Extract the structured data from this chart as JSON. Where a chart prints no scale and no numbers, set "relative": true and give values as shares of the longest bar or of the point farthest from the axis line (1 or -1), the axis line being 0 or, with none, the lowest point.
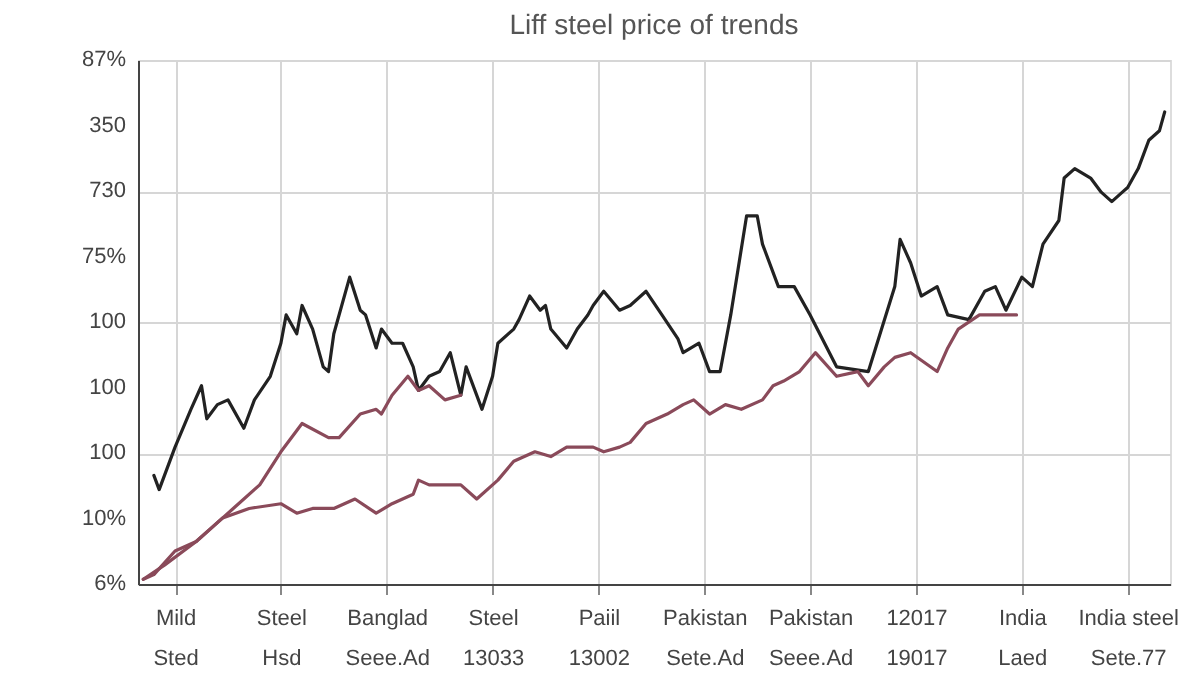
{
  "chart_data": {
    "type": "line",
    "title": "Liff steel price of trends",
    "grid": true,
    "relative": true,
    "line_style": "solid",
    "annotations": [
      "87%",
      "350",
      "730",
      "75%",
      "100",
      "100",
      "100",
      "10%",
      "6%"
    ],
    "categories": [
      null,
      null,
      null,
      null,
      null,
      null,
      null,
      "Mild\nSted",
      null,
      null,
      null,
      null,
      null,
      null,
      null,
      null,
      null,
      null,
      null,
      null,
      null,
      null,
      null,
      null,
      null,
      null,
      null,
      "Steel\nHsd",
      null,
      null,
      null,
      null,
      null,
      null,
      null,
      null,
      null,
      null,
      null,
      null,
      null,
      null,
      null,
      null,
      null,
      null,
      null,
      "Banglad\nSeee.Ad",
      null,
      null,
      null,
      null,
      null,
      null,
      null,
      null,
      null,
      null,
      null,
      null,
      null,
      null,
      null,
      null,
      null,
      null,
      null,
      "Steel\n13033",
      null,
      null,
      null,
      null,
      null,
      null,
      null,
      null,
      null,
      null,
      null,
      null,
      null,
      null,
      null,
      null,
      null,
      null,
      null,
      "Paiil\n13002",
      null,
      null,
      null,
      null,
      null,
      null,
      null,
      null,
      null,
      null,
      null,
      null,
      null,
      null,
      null,
      null,
      null,
      null,
      null,
      "Pakistan\nSete.Ad",
      null,
      null,
      null,
      null,
      null,
      null,
      null,
      null,
      null,
      null,
      null,
      null,
      null,
      null,
      null,
      null,
      null,
      null,
      null,
      "Pakistan\nSeee.Ad",
      null,
      null,
      null,
      null,
      null,
      null,
      null,
      null,
      null,
      null,
      null,
      null,
      null,
      null,
      null,
      null,
      null,
      null,
      null,
      "12017\n19017",
      null,
      null,
      null,
      null,
      null,
      null,
      null,
      null,
      null,
      null,
      null,
      null,
      null,
      null,
      null,
      null,
      null,
      null,
      null,
      "India\nLaed",
      null,
      null,
      null,
      null,
      null,
      null,
      null,
      null,
      null,
      null,
      null,
      null,
      null,
      null,
      null,
      null,
      null,
      null,
      null,
      "India steel\nSete.77",
      null,
      null,
      null,
      null,
      null,
      null,
      null,
      null
    ],
    "series": [
      {
        "color": "#222222",
        "values": [
          null,
          null,
          null,
          0.23,
          0.2,
          null,
          null,
          0.29,
          null,
          null,
          0.37,
          null,
          0.42,
          0.35,
          null,
          0.38,
          null,
          0.39,
          null,
          null,
          0.33,
          null,
          0.39,
          null,
          null,
          0.44,
          null,
          0.51,
          0.57,
          null,
          0.53,
          0.59,
          null,
          0.54,
          null,
          0.46,
          0.45,
          0.53,
          null,
          null,
          0.65,
          null,
          0.58,
          0.57,
          null,
          0.5,
          0.54,
          null,
          0.51,
          null,
          0.51,
          null,
          0.46,
          0.41,
          null,
          0.44,
          null,
          0.45,
          null,
          0.49,
          null,
          0.4,
          0.46,
          null,
          null,
          0.37,
          null,
          0.44,
          0.51,
          null,
          null,
          0.54,
          0.56,
          null,
          0.61,
          null,
          0.58,
          0.59,
          0.54,
          null,
          null,
          0.5,
          null,
          0.54,
          null,
          0.57,
          0.59,
          null,
          0.62,
          null,
          null,
          0.58,
          null,
          0.59,
          null,
          null,
          0.62,
          null,
          null,
          0.57,
          null,
          null,
          0.52,
          0.49,
          null,
          null,
          0.51,
          null,
          0.45,
          null,
          0.45,
          null,
          0.57,
          null,
          null,
          0.78,
          null,
          0.78,
          0.72,
          null,
          null,
          0.63,
          null,
          null,
          0.63,
          null,
          null,
          0.57,
          null,
          null,
          null,
          null,
          0.46,
          null,
          null,
          null,
          null,
          null,
          0.45,
          null,
          null,
          null,
          null,
          0.63,
          0.73,
          null,
          0.68,
          null,
          0.61,
          null,
          null,
          0.63,
          null,
          0.57,
          null,
          null,
          null,
          0.56,
          null,
          null,
          0.62,
          null,
          0.63,
          null,
          0.58,
          null,
          null,
          0.65,
          null,
          0.63,
          null,
          0.72,
          null,
          null,
          0.77,
          0.86,
          null,
          0.88,
          null,
          null,
          0.86,
          null,
          0.83,
          null,
          0.81,
          null,
          0.83,
          0.84,
          null,
          0.88,
          null,
          0.94,
          null,
          0.96,
          1,
          null
        ]
      },
      {
        "color": "#8a4a5a",
        "values": [
          null,
          0.01,
          null,
          0.02,
          null,
          null,
          null,
          0.07,
          null,
          null,
          null,
          0.09,
          null,
          null,
          0.12,
          null,
          null,
          null,
          0.16,
          null,
          null,
          null,
          null,
          0.21,
          null,
          null,
          null,
          0.28,
          null,
          null,
          null,
          0.34,
          null,
          null,
          null,
          null,
          0.31,
          null,
          0.31,
          null,
          null,
          null,
          0.36,
          null,
          null,
          0.37,
          0.36,
          null,
          0.4,
          null,
          null,
          0.44,
          null,
          0.41,
          null,
          0.42,
          null,
          null,
          0.39,
          null,
          null,
          0.4,
          null,
          null,
          null,
          null,
          null,
          null,
          null,
          null,
          null,
          null,
          null,
          null,
          null,
          null,
          null,
          null,
          null,
          null,
          null,
          null,
          null,
          null,
          null,
          null,
          null,
          null,
          null,
          null,
          null,
          null,
          null,
          null,
          null,
          null,
          null,
          null,
          null,
          null,
          null,
          null,
          null,
          null,
          null,
          null,
          null,
          null,
          null,
          null,
          null,
          null,
          null,
          null,
          null,
          null,
          null,
          null,
          null,
          null,
          null,
          null,
          null,
          null,
          null,
          null,
          null,
          null,
          null,
          null,
          null,
          null,
          null,
          null,
          null,
          null,
          null,
          null,
          null,
          null,
          null,
          null,
          null,
          null,
          null,
          null,
          null,
          null,
          null,
          null,
          null,
          null,
          null,
          null,
          null,
          null,
          null,
          null,
          null,
          null,
          null,
          null,
          null,
          null,
          null,
          null,
          null,
          null,
          null,
          null,
          null,
          null,
          null,
          null,
          null,
          null,
          null,
          null,
          null,
          null,
          null,
          null,
          null,
          null,
          null,
          null,
          null,
          null,
          null,
          null,
          null,
          null,
          null,
          null,
          null,
          null
        ]
      },
      {
        "color": "#8a4a5a",
        "values": [
          null,
          0.01,
          null,
          null,
          null,
          0.04,
          null,
          null,
          null,
          null,
          null,
          0.09,
          null,
          null,
          null,
          null,
          0.14,
          null,
          null,
          null,
          null,
          0.16,
          null,
          null,
          null,
          null,
          null,
          0.17,
          null,
          null,
          0.15,
          null,
          null,
          0.16,
          null,
          null,
          null,
          0.16,
          null,
          null,
          null,
          0.18,
          null,
          null,
          null,
          0.15,
          null,
          null,
          0.17,
          null,
          null,
          null,
          0.19,
          0.22,
          null,
          0.21,
          null,
          null,
          null,
          null,
          null,
          0.21,
          null,
          null,
          0.18,
          null,
          null,
          null,
          0.22,
          null,
          null,
          0.26,
          null,
          null,
          null,
          0.28,
          null,
          null,
          0.27,
          null,
          null,
          0.29,
          null,
          null,
          null,
          null,
          0.29,
          null,
          0.28,
          null,
          null,
          0.29,
          null,
          0.3,
          null,
          null,
          0.34,
          null,
          null,
          null,
          0.36,
          null,
          null,
          0.38,
          null,
          0.39,
          null,
          null,
          0.36,
          null,
          null,
          0.38,
          null,
          null,
          0.37,
          null,
          null,
          null,
          0.39,
          null,
          0.42,
          null,
          0.43,
          null,
          null,
          0.45,
          null,
          null,
          0.49,
          null,
          null,
          null,
          0.44,
          null,
          null,
          null,
          0.45,
          null,
          0.42,
          null,
          null,
          0.46,
          null,
          0.48,
          null,
          null,
          0.49,
          null,
          null,
          null,
          null,
          0.45,
          null,
          0.5,
          null,
          0.54,
          null,
          null,
          null,
          0.57,
          null,
          0.57,
          null,
          null,
          null,
          null,
          0.57,
          null,
          null,
          null,
          null,
          null,
          null,
          null,
          null,
          null,
          null,
          null,
          null,
          null,
          null,
          null,
          null,
          null,
          null,
          null,
          null,
          null,
          null,
          null,
          null,
          null,
          null,
          null,
          null,
          null
        ]
      }
    ]
  }
}
